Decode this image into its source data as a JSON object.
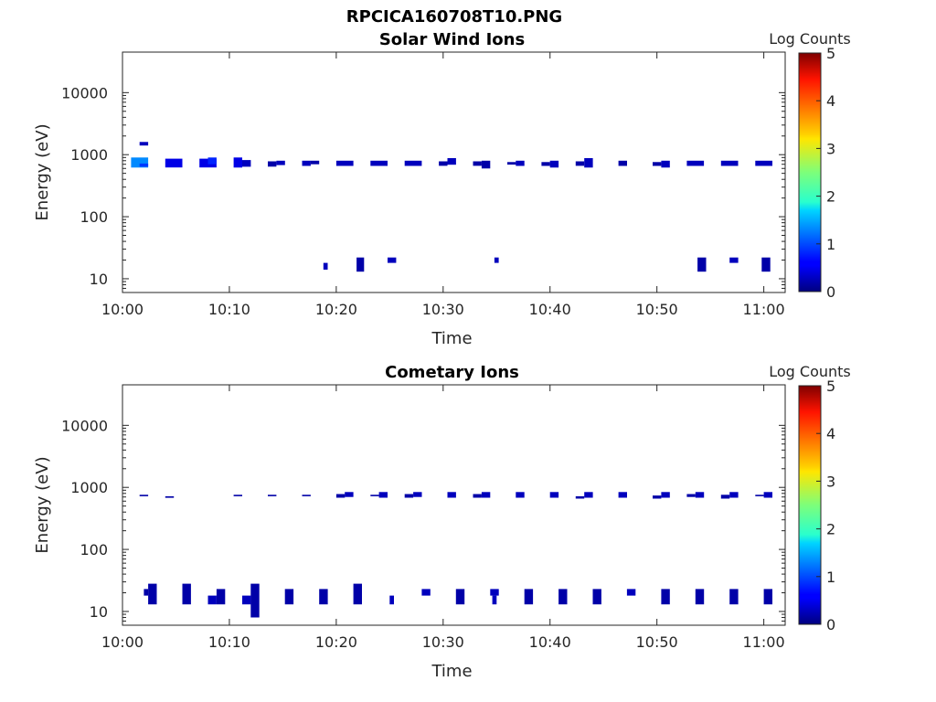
{
  "figure_title": "RPCICA160708T10.PNG",
  "chart_data": [
    {
      "type": "heatmap",
      "title": "Solar Wind Ions",
      "xlabel": "Time",
      "ylabel": "Energy (eV)",
      "x_range_min": [
        600,
        662
      ],
      "y_range": [
        6,
        45000
      ],
      "y_scale": "log",
      "x_tick_labels": [
        "10:00",
        "10:10",
        "10:20",
        "10:30",
        "10:40",
        "10:50",
        "11:00"
      ],
      "x_tick_values": [
        600,
        610,
        620,
        630,
        640,
        650,
        660
      ],
      "y_tick_labels": [
        "10",
        "100",
        "1000",
        "10000"
      ],
      "y_tick_values": [
        10,
        100,
        1000,
        10000
      ],
      "colorbar": {
        "label": "Log Counts",
        "range": [
          0,
          5
        ],
        "ticks": [
          "0",
          "1",
          "2",
          "3",
          "4",
          "5"
        ],
        "colormap": "jet"
      },
      "cells": [
        [
          600.8,
          602.4,
          620,
          900,
          1.3
        ],
        [
          601.6,
          602.4,
          640,
          720,
          0.9
        ],
        [
          601.6,
          602.4,
          1400,
          1600,
          0.3
        ],
        [
          604.0,
          605.6,
          620,
          860,
          0.5
        ],
        [
          607.2,
          608.8,
          620,
          860,
          0.5
        ],
        [
          608.0,
          608.8,
          700,
          900,
          0.8
        ],
        [
          610.4,
          611.2,
          620,
          900,
          0.5
        ],
        [
          611.2,
          612.0,
          640,
          820,
          0.3
        ],
        [
          613.6,
          614.4,
          640,
          780,
          0.2
        ],
        [
          614.4,
          615.2,
          680,
          800,
          0.3
        ],
        [
          616.8,
          617.6,
          660,
          800,
          0.3
        ],
        [
          617.6,
          618.4,
          700,
          800,
          0.2
        ],
        [
          620.0,
          621.6,
          660,
          800,
          0.3
        ],
        [
          623.2,
          624.8,
          660,
          800,
          0.3
        ],
        [
          626.4,
          628.0,
          660,
          800,
          0.3
        ],
        [
          629.6,
          630.4,
          660,
          780,
          0.2
        ],
        [
          630.4,
          631.2,
          690,
          880,
          0.3
        ],
        [
          632.8,
          633.6,
          660,
          780,
          0.2
        ],
        [
          633.6,
          634.4,
          600,
          800,
          0.2
        ],
        [
          636.0,
          636.8,
          690,
          760,
          0.2
        ],
        [
          636.8,
          637.6,
          660,
          800,
          0.3
        ],
        [
          639.2,
          640.0,
          660,
          760,
          0.2
        ],
        [
          640.0,
          640.8,
          620,
          800,
          0.3
        ],
        [
          642.4,
          643.2,
          660,
          780,
          0.2
        ],
        [
          643.2,
          644.0,
          620,
          880,
          0.3
        ],
        [
          646.4,
          647.2,
          660,
          800,
          0.2
        ],
        [
          649.6,
          650.4,
          660,
          760,
          0.2
        ],
        [
          650.4,
          651.2,
          620,
          800,
          0.3
        ],
        [
          652.8,
          654.4,
          660,
          800,
          0.3
        ],
        [
          656.0,
          657.6,
          660,
          800,
          0.3
        ],
        [
          659.2,
          660.8,
          660,
          800,
          0.3
        ],
        [
          618.8,
          619.2,
          14,
          18,
          0.3
        ],
        [
          621.9,
          622.6,
          13,
          22,
          0.2
        ],
        [
          624.8,
          625.6,
          18,
          22,
          0.3
        ],
        [
          634.8,
          635.2,
          18,
          22,
          0.3
        ],
        [
          653.8,
          654.6,
          13,
          22,
          0.2
        ],
        [
          656.8,
          657.6,
          18,
          22,
          0.3
        ],
        [
          659.8,
          660.6,
          13,
          22,
          0.2
        ]
      ]
    },
    {
      "type": "heatmap",
      "title": "Cometary Ions",
      "xlabel": "Time",
      "ylabel": "Energy (eV)",
      "x_range_min": [
        600,
        662
      ],
      "y_range": [
        6,
        45000
      ],
      "y_scale": "log",
      "x_tick_labels": [
        "10:00",
        "10:10",
        "10:20",
        "10:30",
        "10:40",
        "10:50",
        "11:00"
      ],
      "x_tick_values": [
        600,
        610,
        620,
        630,
        640,
        650,
        660
      ],
      "y_tick_labels": [
        "10",
        "100",
        "1000",
        "10000"
      ],
      "y_tick_values": [
        10,
        100,
        1000,
        10000
      ],
      "colorbar": {
        "label": "Log Counts",
        "range": [
          0,
          5
        ],
        "ticks": [
          "0",
          "1",
          "2",
          "3",
          "4",
          "5"
        ],
        "colormap": "jet"
      },
      "cells": [
        [
          601.6,
          602.4,
          720,
          760,
          0.2
        ],
        [
          604.0,
          604.8,
          680,
          720,
          0.2
        ],
        [
          610.4,
          611.2,
          720,
          760,
          0.2
        ],
        [
          613.6,
          614.4,
          720,
          760,
          0.2
        ],
        [
          616.8,
          617.6,
          720,
          760,
          0.2
        ],
        [
          620.0,
          620.8,
          680,
          780,
          0.2
        ],
        [
          620.8,
          621.6,
          700,
          840,
          0.3
        ],
        [
          623.2,
          624.0,
          720,
          760,
          0.2
        ],
        [
          624.0,
          624.8,
          680,
          840,
          0.3
        ],
        [
          626.4,
          627.2,
          680,
          780,
          0.2
        ],
        [
          627.2,
          628.0,
          700,
          840,
          0.3
        ],
        [
          630.4,
          631.2,
          680,
          840,
          0.3
        ],
        [
          632.8,
          633.6,
          680,
          780,
          0.2
        ],
        [
          633.6,
          634.4,
          680,
          840,
          0.3
        ],
        [
          636.8,
          637.6,
          680,
          840,
          0.3
        ],
        [
          640.0,
          640.8,
          680,
          840,
          0.3
        ],
        [
          642.4,
          643.2,
          660,
          720,
          0.2
        ],
        [
          643.2,
          644.0,
          680,
          840,
          0.3
        ],
        [
          646.4,
          647.2,
          680,
          840,
          0.3
        ],
        [
          649.6,
          650.4,
          660,
          740,
          0.2
        ],
        [
          650.4,
          651.2,
          680,
          840,
          0.3
        ],
        [
          652.8,
          653.6,
          700,
          780,
          0.2
        ],
        [
          653.6,
          654.4,
          680,
          840,
          0.3
        ],
        [
          656.0,
          656.8,
          660,
          760,
          0.2
        ],
        [
          656.8,
          657.6,
          680,
          840,
          0.3
        ],
        [
          659.2,
          660.0,
          720,
          760,
          0.2
        ],
        [
          660.0,
          660.8,
          680,
          840,
          0.3
        ],
        [
          602.4,
          603.2,
          13,
          28,
          0.2
        ],
        [
          602.0,
          602.4,
          18,
          23,
          0.2
        ],
        [
          605.6,
          606.4,
          13,
          28,
          0.2
        ],
        [
          608.0,
          608.8,
          13,
          18,
          0.3
        ],
        [
          608.8,
          609.6,
          13,
          23,
          0.2
        ],
        [
          611.2,
          612.0,
          13,
          18,
          0.3
        ],
        [
          612.0,
          612.8,
          8,
          28,
          0.2
        ],
        [
          615.2,
          616.0,
          13,
          23,
          0.2
        ],
        [
          618.4,
          619.2,
          13,
          23,
          0.2
        ],
        [
          621.6,
          622.4,
          13,
          28,
          0.2
        ],
        [
          625.0,
          625.4,
          13,
          18,
          0.3
        ],
        [
          628.0,
          628.8,
          18,
          23,
          0.3
        ],
        [
          631.2,
          632.0,
          13,
          23,
          0.2
        ],
        [
          634.4,
          635.2,
          18,
          23,
          0.3
        ],
        [
          634.6,
          635.0,
          13,
          18,
          0.3
        ],
        [
          637.6,
          638.4,
          13,
          23,
          0.2
        ],
        [
          640.8,
          641.6,
          13,
          23,
          0.2
        ],
        [
          644.0,
          644.8,
          13,
          23,
          0.2
        ],
        [
          647.2,
          648.0,
          18,
          23,
          0.3
        ],
        [
          650.4,
          651.2,
          13,
          23,
          0.2
        ],
        [
          653.6,
          654.4,
          13,
          23,
          0.2
        ],
        [
          656.8,
          657.6,
          13,
          23,
          0.2
        ],
        [
          660.0,
          660.8,
          13,
          23,
          0.2
        ]
      ]
    }
  ]
}
